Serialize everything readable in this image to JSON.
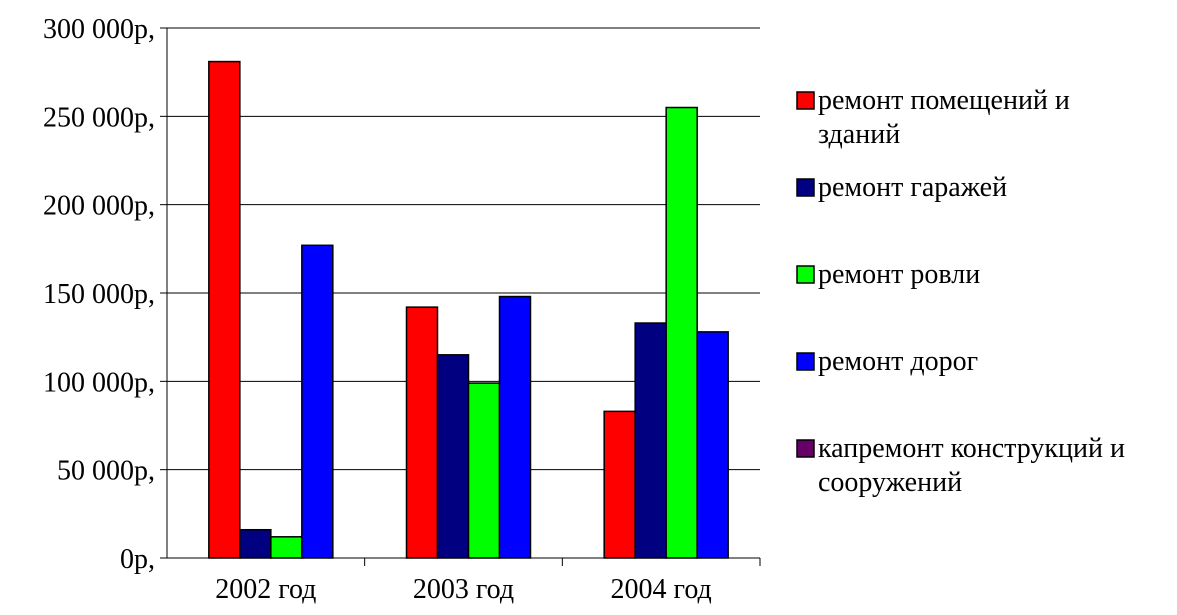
{
  "chart_data": {
    "type": "bar",
    "title": "",
    "xlabel": "",
    "ylabel": "",
    "categories": [
      "2002 год",
      "2003 год",
      "2004 год"
    ],
    "ylim": [
      0,
      300000
    ],
    "y_ticks": [
      {
        "value": 0,
        "label": "0р,"
      },
      {
        "value": 50000,
        "label": "50 000р,"
      },
      {
        "value": 100000,
        "label": "100 000р,"
      },
      {
        "value": 150000,
        "label": "150 000р,"
      },
      {
        "value": 200000,
        "label": "200 000р,"
      },
      {
        "value": 250000,
        "label": "250 000р,"
      },
      {
        "value": 300000,
        "label": "300 000р,"
      }
    ],
    "grid": true,
    "legend_position": "right",
    "series": [
      {
        "name": "ремонт помещений и зданий",
        "color": "#ff0000",
        "values": [
          281000,
          142000,
          83000
        ]
      },
      {
        "name": "ремонт гаражей",
        "color": "#000080",
        "values": [
          16000,
          115000,
          133000
        ]
      },
      {
        "name": "ремонт ровли",
        "color": "#00ff00",
        "values": [
          12000,
          99000,
          255000
        ]
      },
      {
        "name": "ремонт дорог",
        "color": "#0000ff",
        "values": [
          177000,
          148000,
          128000
        ]
      },
      {
        "name": "капремонт конструкций и сооружений",
        "color": "#660066",
        "values": [
          0,
          0,
          0
        ]
      }
    ]
  }
}
